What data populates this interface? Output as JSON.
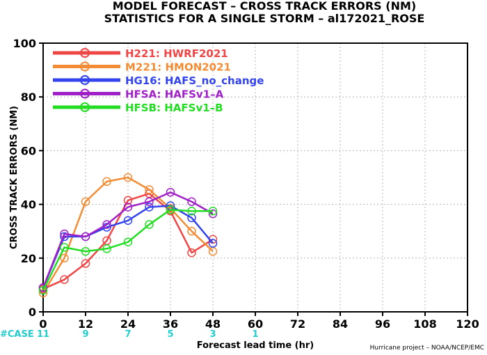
{
  "chart_data": {
    "type": "line",
    "title": "MODEL FORECAST – CROSS TRACK ERRORS (NM)",
    "subtitle": "STATISTICS FOR A SINGLE STORM – al172021_ROSE",
    "xlabel": "Forecast lead time (hr)",
    "ylabel": "CROSS TRACK ERRORS (NM)",
    "xlim": [
      0,
      120
    ],
    "ylim": [
      0,
      100
    ],
    "xticks": [
      0,
      12,
      24,
      36,
      48,
      60,
      72,
      84,
      96,
      108,
      120
    ],
    "yticks": [
      0,
      20,
      40,
      60,
      80,
      100
    ],
    "grid": true,
    "legend_position": "top-left",
    "series": [
      {
        "name": "H221: HWRF2021",
        "color": "#f04545",
        "x": [
          0,
          6,
          12,
          18,
          24,
          30,
          36,
          42,
          48
        ],
        "y": [
          8.5,
          12,
          18,
          26.5,
          41.5,
          44,
          37.5,
          22,
          27
        ]
      },
      {
        "name": "M221: HMON2021",
        "color": "#f28c35",
        "x": [
          0,
          6,
          12,
          18,
          24,
          30,
          36,
          42,
          48
        ],
        "y": [
          7,
          20,
          41,
          48.5,
          50,
          45.5,
          38.5,
          30,
          22.5
        ]
      },
      {
        "name": "HG16: HAFS_no_change",
        "color": "#3344ee",
        "x": [
          0,
          6,
          12,
          18,
          24,
          30,
          36,
          42,
          48
        ],
        "y": [
          9,
          28,
          28,
          31.5,
          34,
          39,
          39.5,
          35,
          25.5
        ]
      },
      {
        "name": "HFSA: HAFSv1–A",
        "color": "#a020c8",
        "x": [
          0,
          6,
          12,
          18,
          24,
          30,
          36,
          42,
          48
        ],
        "y": [
          9,
          29,
          28,
          32.5,
          39,
          41,
          44.5,
          41,
          36.5
        ]
      },
      {
        "name": "HFSB: HAFSv1–B",
        "color": "#22dd22",
        "x": [
          0,
          6,
          12,
          18,
          24,
          30,
          36,
          42,
          48
        ],
        "y": [
          8,
          24,
          22.5,
          23.5,
          26,
          32.5,
          38,
          37.5,
          37.5
        ]
      }
    ],
    "cases": {
      "label": "#CASE",
      "x": [
        0,
        12,
        24,
        36,
        48,
        60
      ],
      "counts": [
        "11",
        "9",
        "7",
        "5",
        "3",
        "1"
      ],
      "color": "#22cccc"
    },
    "credit": "Hurricane project – NOAA/NCEP/EMC"
  }
}
